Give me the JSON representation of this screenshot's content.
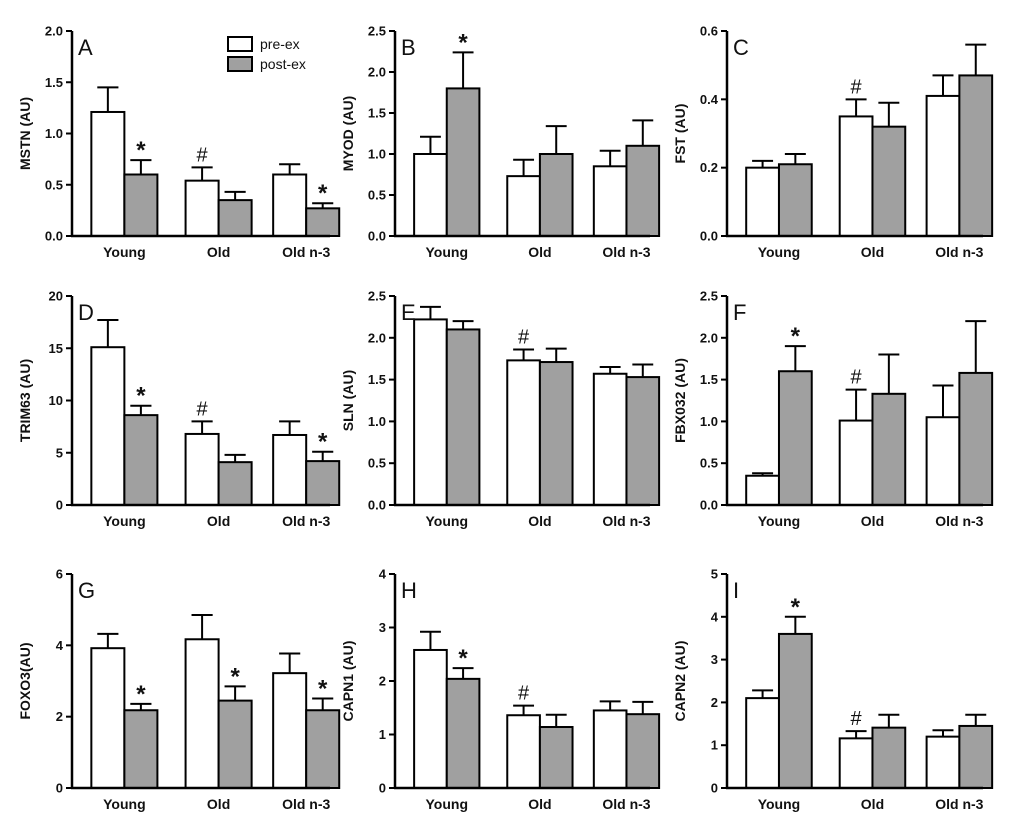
{
  "figure": {
    "legend": [
      {
        "label": "pre-ex",
        "color": "#ffffff"
      },
      {
        "label": "post-ex",
        "color": "#a0a0a0"
      }
    ],
    "colors": {
      "pre": "#ffffff",
      "post": "#a0a0a0",
      "stroke": "#000000"
    }
  },
  "chart_data": [
    {
      "panel": "A",
      "type": "bar",
      "ylabel": "MSTN (AU)",
      "ylim": [
        0,
        2.0
      ],
      "ticks": [
        "0.0",
        "0.5",
        "1.0",
        "1.5",
        "2.0"
      ],
      "categories": [
        "Young",
        "Old",
        "Old n-3"
      ],
      "series": [
        {
          "name": "pre-ex",
          "values": [
            1.21,
            0.54,
            0.6
          ],
          "errors": [
            0.24,
            0.13,
            0.1
          ]
        },
        {
          "name": "post-ex",
          "values": [
            0.6,
            0.35,
            0.27
          ],
          "errors": [
            0.14,
            0.08,
            0.05
          ]
        }
      ],
      "marks": [
        {
          "symbol": "*",
          "series": 1,
          "category": 0
        },
        {
          "symbol": "#",
          "series": 0,
          "category": 1
        },
        {
          "symbol": "*",
          "series": 1,
          "category": 2
        }
      ]
    },
    {
      "panel": "B",
      "type": "bar",
      "ylabel": "MYOD (AU)",
      "ylim": [
        0,
        2.5
      ],
      "ticks": [
        "0.0",
        "0.5",
        "1.0",
        "1.5",
        "2.0",
        "2.5"
      ],
      "categories": [
        "Young",
        "Old",
        "Old n-3"
      ],
      "series": [
        {
          "name": "pre-ex",
          "values": [
            1.0,
            0.73,
            0.85
          ],
          "errors": [
            0.21,
            0.2,
            0.19
          ]
        },
        {
          "name": "post-ex",
          "values": [
            1.8,
            1.0,
            1.1
          ],
          "errors": [
            0.44,
            0.34,
            0.31
          ]
        }
      ],
      "marks": [
        {
          "symbol": "*",
          "series": 1,
          "category": 0
        }
      ]
    },
    {
      "panel": "C",
      "type": "bar",
      "ylabel": "FST (AU)",
      "ylim": [
        0,
        0.6
      ],
      "ticks": [
        "0.0",
        "0.2",
        "0.4",
        "0.6"
      ],
      "categories": [
        "Young",
        "Old",
        "Old n-3"
      ],
      "series": [
        {
          "name": "pre-ex",
          "values": [
            0.2,
            0.35,
            0.41
          ],
          "errors": [
            0.02,
            0.05,
            0.06
          ]
        },
        {
          "name": "post-ex",
          "values": [
            0.21,
            0.32,
            0.47
          ],
          "errors": [
            0.03,
            0.07,
            0.09
          ]
        }
      ],
      "marks": [
        {
          "symbol": "#",
          "series": 0,
          "category": 1
        }
      ]
    },
    {
      "panel": "D",
      "type": "bar",
      "ylabel": "TRIM63 (AU)",
      "ylim": [
        0,
        20
      ],
      "ticks": [
        "0",
        "5",
        "10",
        "15",
        "20"
      ],
      "categories": [
        "Young",
        "Old",
        "Old n-3"
      ],
      "series": [
        {
          "name": "pre-ex",
          "values": [
            15.1,
            6.8,
            6.7
          ],
          "errors": [
            2.6,
            1.2,
            1.3
          ]
        },
        {
          "name": "post-ex",
          "values": [
            8.6,
            4.1,
            4.2
          ],
          "errors": [
            0.9,
            0.7,
            0.9
          ]
        }
      ],
      "marks": [
        {
          "symbol": "*",
          "series": 1,
          "category": 0
        },
        {
          "symbol": "#",
          "series": 0,
          "category": 1
        },
        {
          "symbol": "*",
          "series": 1,
          "category": 2
        }
      ]
    },
    {
      "panel": "E",
      "type": "bar",
      "ylabel": "SLN (AU)",
      "ylim": [
        0,
        2.5
      ],
      "ticks": [
        "0.0",
        "0.5",
        "1.0",
        "1.5",
        "2.0",
        "2.5"
      ],
      "categories": [
        "Young",
        "Old",
        "Old n-3"
      ],
      "series": [
        {
          "name": "pre-ex",
          "values": [
            2.22,
            1.73,
            1.57
          ],
          "errors": [
            0.15,
            0.13,
            0.08
          ]
        },
        {
          "name": "post-ex",
          "values": [
            2.1,
            1.71,
            1.53
          ],
          "errors": [
            0.1,
            0.16,
            0.15
          ]
        }
      ],
      "marks": [
        {
          "symbol": "#",
          "series": 0,
          "category": 1
        }
      ]
    },
    {
      "panel": "F",
      "type": "bar",
      "ylabel": "FBX032 (AU)",
      "ylim": [
        0,
        2.5
      ],
      "ticks": [
        "0.0",
        "0.5",
        "1.0",
        "1.5",
        "2.0",
        "2.5"
      ],
      "categories": [
        "Young",
        "Old",
        "Old n-3"
      ],
      "series": [
        {
          "name": "pre-ex",
          "values": [
            0.35,
            1.01,
            1.05
          ],
          "errors": [
            0.03,
            0.37,
            0.38
          ]
        },
        {
          "name": "post-ex",
          "values": [
            1.6,
            1.33,
            1.58
          ],
          "errors": [
            0.3,
            0.47,
            0.62
          ]
        }
      ],
      "marks": [
        {
          "symbol": "*",
          "series": 1,
          "category": 0
        },
        {
          "symbol": "#",
          "series": 0,
          "category": 1
        }
      ]
    },
    {
      "panel": "G",
      "type": "bar",
      "ylabel": "FOXO3(AU)",
      "ylim": [
        0,
        6
      ],
      "ticks": [
        "0",
        "2",
        "4",
        "6"
      ],
      "categories": [
        "Young",
        "Old",
        "Old n-3"
      ],
      "series": [
        {
          "name": "pre-ex",
          "values": [
            3.92,
            4.17,
            3.22
          ],
          "errors": [
            0.4,
            0.68,
            0.55
          ]
        },
        {
          "name": "post-ex",
          "values": [
            2.18,
            2.45,
            2.18
          ],
          "errors": [
            0.18,
            0.4,
            0.33
          ]
        }
      ],
      "marks": [
        {
          "symbol": "*",
          "series": 1,
          "category": 0
        },
        {
          "symbol": "*",
          "series": 1,
          "category": 1
        },
        {
          "symbol": "*",
          "series": 1,
          "category": 2
        }
      ]
    },
    {
      "panel": "H",
      "type": "bar",
      "ylabel": "CAPN1 (AU)",
      "ylim": [
        0,
        4
      ],
      "ticks": [
        "0",
        "1",
        "2",
        "3",
        "4"
      ],
      "categories": [
        "Young",
        "Old",
        "Old n-3"
      ],
      "series": [
        {
          "name": "pre-ex",
          "values": [
            2.58,
            1.36,
            1.45
          ],
          "errors": [
            0.34,
            0.18,
            0.17
          ]
        },
        {
          "name": "post-ex",
          "values": [
            2.04,
            1.14,
            1.38
          ],
          "errors": [
            0.2,
            0.23,
            0.23
          ]
        }
      ],
      "marks": [
        {
          "symbol": "*",
          "series": 1,
          "category": 0
        },
        {
          "symbol": "#",
          "series": 0,
          "category": 1
        }
      ]
    },
    {
      "panel": "I",
      "type": "bar",
      "ylabel": "CAPN2 (AU)",
      "ylim": [
        0,
        5
      ],
      "ticks": [
        "0",
        "1",
        "2",
        "3",
        "4",
        "5"
      ],
      "categories": [
        "Young",
        "Old",
        "Old n-3"
      ],
      "series": [
        {
          "name": "pre-ex",
          "values": [
            2.1,
            1.16,
            1.2
          ],
          "errors": [
            0.18,
            0.17,
            0.15
          ]
        },
        {
          "name": "post-ex",
          "values": [
            3.6,
            1.41,
            1.45
          ],
          "errors": [
            0.4,
            0.3,
            0.26
          ]
        }
      ],
      "marks": [
        {
          "symbol": "*",
          "series": 1,
          "category": 0
        },
        {
          "symbol": "#",
          "series": 0,
          "category": 1
        }
      ]
    }
  ]
}
